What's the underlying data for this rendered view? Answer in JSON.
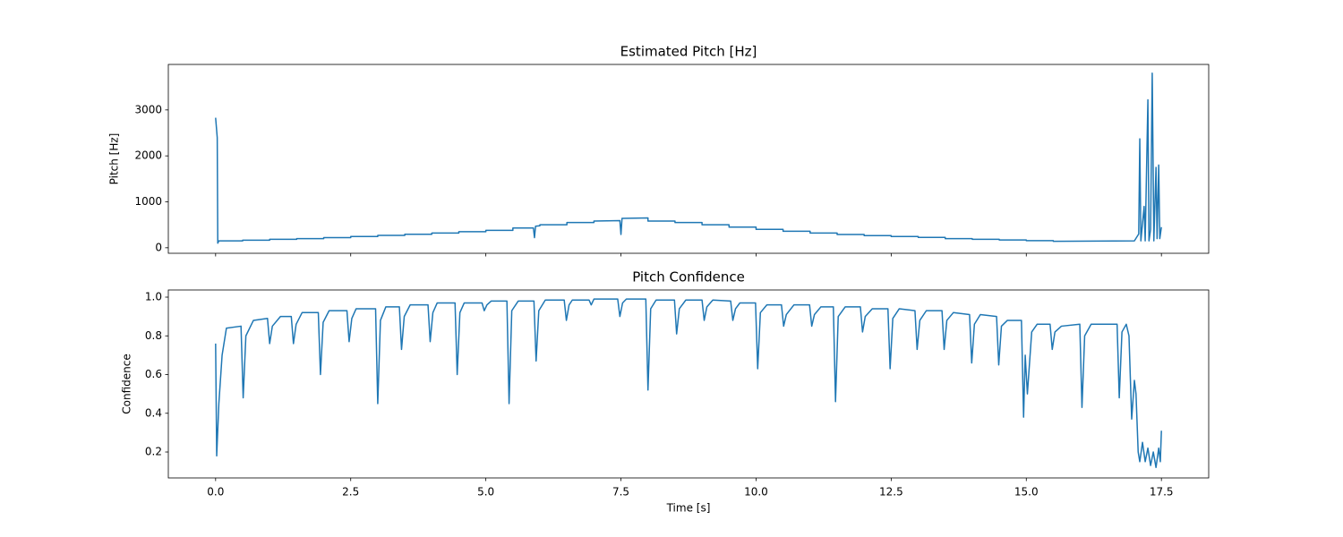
{
  "chart_data": [
    {
      "type": "line",
      "title": "Estimated Pitch [Hz]",
      "ylabel": "Pitch [Hz]",
      "color": "#1f77b4",
      "xlim": [
        -0.875,
        18.375
      ],
      "ylim": [
        -120,
        3990
      ],
      "xticks": [
        0,
        2.5,
        5,
        7.5,
        10,
        12.5,
        15,
        17.5
      ],
      "show_xtick_labels": false,
      "yticks": [
        0,
        1000,
        2000,
        3000
      ],
      "x": [
        0,
        0.03,
        0.04,
        0.06,
        0.5,
        0.5,
        1,
        1,
        1.5,
        1.5,
        2,
        2,
        2.5,
        2.5,
        3,
        3,
        3.5,
        3.5,
        4,
        4,
        4.5,
        4.5,
        5,
        5,
        5.5,
        5.5,
        5.88,
        5.9,
        5.92,
        6,
        6,
        6.5,
        6.5,
        7,
        7,
        7.48,
        7.5,
        7.52,
        8,
        8,
        8.5,
        8.5,
        9,
        9,
        9.5,
        9.5,
        10,
        10,
        10.5,
        10.5,
        11,
        11,
        11.5,
        11.5,
        12,
        12,
        12.5,
        12.5,
        13,
        13,
        13.5,
        13.5,
        14,
        14,
        14.5,
        14.5,
        15,
        15,
        15.5,
        15.5,
        17,
        17.08,
        17.1,
        17.12,
        17.18,
        17.2,
        17.25,
        17.27,
        17.3,
        17.33,
        17.36,
        17.4,
        17.42,
        17.45,
        17.47,
        17.5
      ],
      "values": [
        2830,
        2400,
        100,
        150,
        150,
        165,
        165,
        185,
        185,
        200,
        200,
        220,
        220,
        245,
        245,
        270,
        270,
        295,
        295,
        320,
        320,
        350,
        350,
        380,
        380,
        430,
        430,
        220,
        470,
        480,
        500,
        500,
        550,
        550,
        580,
        590,
        290,
        640,
        650,
        580,
        580,
        550,
        550,
        500,
        500,
        450,
        450,
        400,
        400,
        360,
        360,
        320,
        320,
        290,
        290,
        265,
        265,
        245,
        245,
        225,
        225,
        200,
        200,
        185,
        185,
        170,
        170,
        155,
        155,
        140,
        150,
        300,
        2370,
        150,
        900,
        150,
        3220,
        150,
        400,
        3800,
        150,
        1750,
        200,
        1800,
        200,
        450
      ]
    },
    {
      "type": "line",
      "title": "Pitch Confidence",
      "ylabel": "Confidence",
      "xlabel": "Time [s]",
      "color": "#1f77b4",
      "xlim": [
        -0.875,
        18.375
      ],
      "ylim": [
        0.066,
        1.037
      ],
      "xticks": [
        {
          "value": 0,
          "label": "0.0"
        },
        2.5,
        {
          "value": 5,
          "label": "5.0"
        },
        7.5,
        {
          "value": 10,
          "label": "10.0"
        },
        12.5,
        {
          "value": 15,
          "label": "15.0"
        },
        17.5
      ],
      "show_xtick_labels": true,
      "yticks": [
        0.2,
        0.4,
        0.6,
        0.8,
        {
          "value": 1,
          "label": "1.0"
        }
      ],
      "x": [
        0,
        0.02,
        0.06,
        0.12,
        0.2,
        0.47,
        0.51,
        0.56,
        0.7,
        0.96,
        1.0,
        1.05,
        1.2,
        1.4,
        1.44,
        1.49,
        1.6,
        1.9,
        1.94,
        1.99,
        2.1,
        2.43,
        2.47,
        2.52,
        2.6,
        2.96,
        3.0,
        3.05,
        3.15,
        3.4,
        3.44,
        3.49,
        3.6,
        3.93,
        3.97,
        4.02,
        4.1,
        4.43,
        4.47,
        4.52,
        4.6,
        4.93,
        4.97,
        5.02,
        5.1,
        5.39,
        5.43,
        5.48,
        5.6,
        5.89,
        5.93,
        5.98,
        6.1,
        6.45,
        6.49,
        6.54,
        6.6,
        6.91,
        6.95,
        7.0,
        7.44,
        7.48,
        7.53,
        7.6,
        7.96,
        8.0,
        8.05,
        8.15,
        8.49,
        8.53,
        8.58,
        8.7,
        9.0,
        9.04,
        9.09,
        9.2,
        9.53,
        9.57,
        9.62,
        9.7,
        9.99,
        10.03,
        10.08,
        10.2,
        10.47,
        10.51,
        10.56,
        10.7,
        10.99,
        11.03,
        11.08,
        11.2,
        11.43,
        11.47,
        11.52,
        11.65,
        11.93,
        11.97,
        12.02,
        12.15,
        12.44,
        12.48,
        12.53,
        12.65,
        12.94,
        12.98,
        13.03,
        13.15,
        13.44,
        13.48,
        13.53,
        13.65,
        13.95,
        13.99,
        14.04,
        14.15,
        14.45,
        14.49,
        14.54,
        14.65,
        14.91,
        14.95,
        14.98,
        15.02,
        15.1,
        15.2,
        15.44,
        15.48,
        15.53,
        15.65,
        15.99,
        16.03,
        16.08,
        16.2,
        16.68,
        16.72,
        16.77,
        16.85,
        16.9,
        16.95,
        17.0,
        17.03,
        17.07,
        17.1,
        17.15,
        17.2,
        17.25,
        17.3,
        17.35,
        17.4,
        17.45,
        17.48,
        17.5
      ],
      "values": [
        0.76,
        0.18,
        0.45,
        0.7,
        0.84,
        0.85,
        0.48,
        0.8,
        0.88,
        0.89,
        0.76,
        0.85,
        0.9,
        0.9,
        0.76,
        0.86,
        0.92,
        0.92,
        0.6,
        0.87,
        0.93,
        0.93,
        0.77,
        0.89,
        0.94,
        0.94,
        0.45,
        0.88,
        0.95,
        0.95,
        0.73,
        0.9,
        0.96,
        0.96,
        0.77,
        0.92,
        0.97,
        0.97,
        0.6,
        0.92,
        0.97,
        0.97,
        0.93,
        0.96,
        0.98,
        0.98,
        0.45,
        0.93,
        0.98,
        0.98,
        0.67,
        0.93,
        0.985,
        0.985,
        0.88,
        0.96,
        0.985,
        0.985,
        0.96,
        0.99,
        0.99,
        0.9,
        0.97,
        0.99,
        0.99,
        0.52,
        0.94,
        0.985,
        0.985,
        0.81,
        0.94,
        0.985,
        0.985,
        0.88,
        0.95,
        0.985,
        0.98,
        0.88,
        0.94,
        0.97,
        0.97,
        0.63,
        0.92,
        0.96,
        0.96,
        0.85,
        0.91,
        0.96,
        0.96,
        0.85,
        0.91,
        0.95,
        0.95,
        0.46,
        0.9,
        0.95,
        0.95,
        0.82,
        0.9,
        0.94,
        0.94,
        0.63,
        0.89,
        0.94,
        0.93,
        0.73,
        0.88,
        0.93,
        0.93,
        0.73,
        0.88,
        0.92,
        0.91,
        0.66,
        0.86,
        0.91,
        0.9,
        0.65,
        0.85,
        0.88,
        0.88,
        0.38,
        0.7,
        0.5,
        0.82,
        0.86,
        0.86,
        0.73,
        0.82,
        0.85,
        0.86,
        0.43,
        0.8,
        0.86,
        0.86,
        0.48,
        0.82,
        0.86,
        0.8,
        0.37,
        0.57,
        0.5,
        0.2,
        0.15,
        0.25,
        0.15,
        0.22,
        0.13,
        0.2,
        0.12,
        0.22,
        0.15,
        0.31
      ]
    }
  ]
}
